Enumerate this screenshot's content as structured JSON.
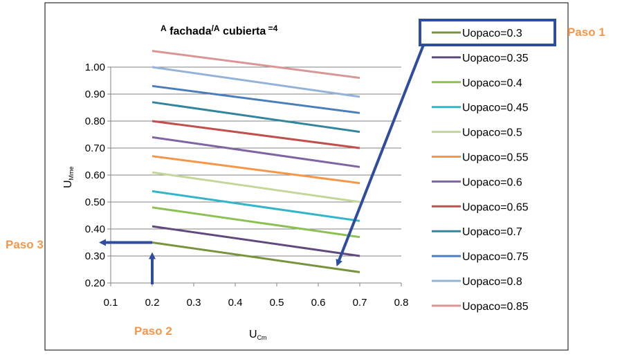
{
  "chart_data": {
    "type": "line",
    "title": {
      "part1": "A",
      "part1_sub": " fachada",
      "part2": "/A",
      "part2_sub": " cubierta",
      "part3": " =4"
    },
    "xlabel": {
      "main": "U",
      "sub": "Cm"
    },
    "ylabel": {
      "main": "U",
      "sub": "Mme"
    },
    "xlim": [
      0.1,
      0.8
    ],
    "ylim": [
      0.2,
      1.0
    ],
    "x_ticks": [
      "0.1",
      "0.2",
      "0.3",
      "0.4",
      "0.5",
      "0.6",
      "0.7",
      "0.8"
    ],
    "y_ticks": [
      "0.20",
      "0.30",
      "0.40",
      "0.50",
      "0.60",
      "0.70",
      "0.80",
      "0.90",
      "1.00"
    ],
    "grid": "horizontal",
    "legend_placement": "right",
    "x": [
      0.2,
      0.7
    ],
    "series": [
      {
        "name": "Uopaco=0.3",
        "color": "#77933c",
        "values": [
          0.35,
          0.24
        ]
      },
      {
        "name": "Uopaco=0.35",
        "color": "#604a7b",
        "values": [
          0.41,
          0.3
        ]
      },
      {
        "name": "Uopaco=0.4",
        "color": "#8cc152",
        "values": [
          0.48,
          0.37
        ]
      },
      {
        "name": "Uopaco=0.45",
        "color": "#31b6c8",
        "values": [
          0.54,
          0.43
        ]
      },
      {
        "name": "Uopaco=0.5",
        "color": "#c4d79b",
        "values": [
          0.61,
          0.5
        ]
      },
      {
        "name": "Uopaco=0.55",
        "color": "#f79646",
        "values": [
          0.67,
          0.57
        ]
      },
      {
        "name": "Uopaco=0.6",
        "color": "#8064a2",
        "values": [
          0.74,
          0.63
        ]
      },
      {
        "name": "Uopaco=0.65",
        "color": "#c0504d",
        "values": [
          0.8,
          0.7
        ]
      },
      {
        "name": "Uopaco=0.7",
        "color": "#31859c",
        "values": [
          0.87,
          0.76
        ]
      },
      {
        "name": "Uopaco=0.75",
        "color": "#4a7ebb",
        "values": [
          0.93,
          0.83
        ]
      },
      {
        "name": "Uopaco=0.8",
        "color": "#95b3d7",
        "values": [
          1.0,
          0.89
        ]
      },
      {
        "name": "Uopaco=0.85",
        "color": "#d99694",
        "values": [
          1.06,
          0.96
        ]
      }
    ],
    "annotations": {
      "step1": "Paso 1",
      "step2": "Paso 2",
      "step3": "Paso 3",
      "step_color": "#f79646",
      "arrow_color": "#2f4d9e",
      "step2_x": 0.2,
      "step3_y": 0.35,
      "step1_target": {
        "x": 0.65,
        "y": 0.24
      }
    }
  }
}
